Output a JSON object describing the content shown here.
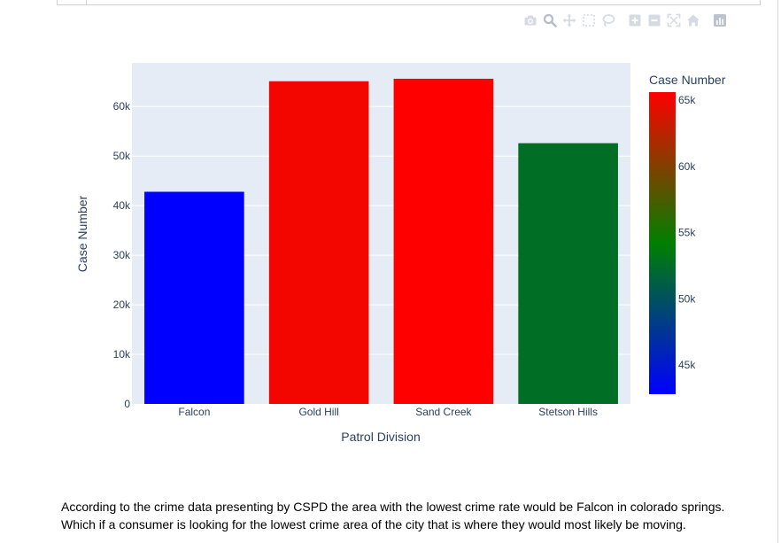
{
  "toolbar": {
    "icons": [
      "camera-icon",
      "zoom-icon",
      "pan-icon",
      "box-select-icon",
      "lasso-icon",
      "zoom-in-icon",
      "zoom-out-icon",
      "autoscale-icon",
      "reset-axes-icon",
      "plotly-logo-icon"
    ]
  },
  "chart_data": {
    "type": "bar",
    "categories": [
      "Falcon",
      "Gold Hill",
      "Sand Creek",
      "Stetson Hills"
    ],
    "values": [
      42800,
      65100,
      65600,
      52600
    ],
    "xlabel": "Patrol Division",
    "ylabel": "Case Number",
    "ylim": [
      0,
      68800
    ],
    "yticks": [
      0,
      10000,
      20000,
      30000,
      40000,
      50000,
      60000
    ],
    "ytick_labels": [
      "0",
      "10k",
      "20k",
      "30k",
      "40k",
      "50k",
      "60k"
    ],
    "grid": true,
    "plot_bg": "#e5ecf6",
    "colorbar": {
      "title": "Case Number",
      "range": [
        42800,
        65600
      ],
      "colorscale": [
        "#0000ff",
        "#008000",
        "#ff0000"
      ],
      "ticks": [
        45000,
        50000,
        55000,
        60000,
        65000
      ],
      "tick_labels": [
        "45k",
        "50k",
        "55k",
        "60k",
        "65k"
      ]
    }
  },
  "description": {
    "line1": "According to the crime data presenting by CSPD the area with the lowest crime rate would be Falcon in colorado springs.",
    "line2": "Which if a consumer is looking for the lowest crime area of the city that is where they would most likely be moving."
  }
}
